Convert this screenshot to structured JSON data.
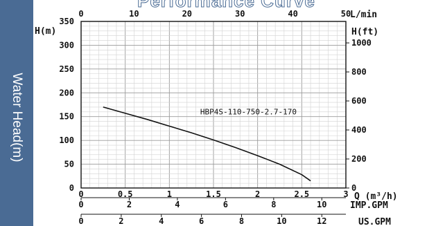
{
  "chart_data": {
    "type": "line",
    "title": "Performance Curve",
    "ylabel": "Water Head(m)",
    "xlabel": "Q (m³/h)",
    "xlim": [
      0,
      3
    ],
    "ylim": [
      0,
      350
    ],
    "x_ticks": [
      "0",
      "0.5",
      "1",
      "1.5",
      "2",
      "2.5",
      "3"
    ],
    "y_ticks": [
      "0",
      "50",
      "100",
      "150",
      "200",
      "250",
      "300",
      "350"
    ],
    "top_axis": {
      "unit": "L/min",
      "range": [
        0,
        50
      ],
      "ticks": [
        "0",
        "10",
        "20",
        "30",
        "40",
        "50"
      ]
    },
    "left_unit": "H(m)",
    "right_axis": {
      "unit": "H(ft)",
      "range_ft": [
        0,
        1148
      ],
      "ticks": [
        "0",
        "200",
        "400",
        "600",
        "800",
        "1000"
      ]
    },
    "imp_axis": {
      "unit": "IMP.GPM",
      "range": [
        0,
        11
      ],
      "ticks": [
        "0",
        "2",
        "4",
        "6",
        "8",
        "10"
      ]
    },
    "us_axis": {
      "unit": "US.GPM",
      "range": [
        0,
        13.2
      ],
      "ticks": [
        "0",
        "2",
        "4",
        "6",
        "8",
        "10",
        "12"
      ]
    },
    "grid": true,
    "series": [
      {
        "name": "HBP4S-110-750-2.7-170",
        "x": [
          0.25,
          0.5,
          0.75,
          1.0,
          1.25,
          1.5,
          1.75,
          2.0,
          2.25,
          2.5,
          2.6
        ],
        "y": [
          170,
          157,
          144,
          130,
          116,
          101,
          85,
          68,
          50,
          28,
          15
        ]
      }
    ],
    "series_label_at": {
      "x": 1.35,
      "y": 155
    }
  },
  "labels": {
    "header_title": "Performance Curve",
    "side_label": "Water Head(m)"
  }
}
